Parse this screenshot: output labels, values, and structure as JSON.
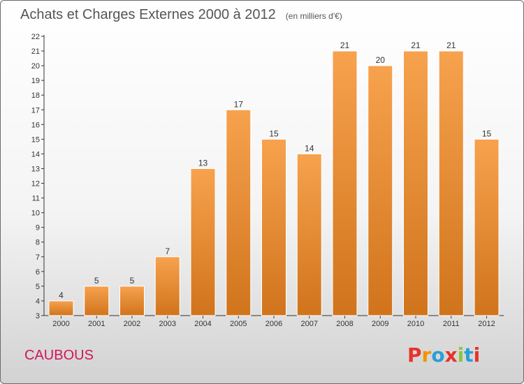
{
  "chart_data": {
    "type": "bar",
    "title": "Achats et Charges Externes 2000 à 2012",
    "subtitle": "(en milliers d'€)",
    "categories": [
      "2000",
      "2001",
      "2002",
      "2003",
      "2004",
      "2005",
      "2006",
      "2007",
      "2008",
      "2009",
      "2010",
      "2011",
      "2012"
    ],
    "values": [
      4,
      5,
      5,
      7,
      13,
      17,
      15,
      14,
      21,
      20,
      21,
      21,
      15
    ],
    "ylim": [
      3,
      22
    ],
    "yticks": [
      3,
      4,
      5,
      6,
      7,
      8,
      9,
      10,
      11,
      12,
      13,
      14,
      15,
      16,
      17,
      18,
      19,
      20,
      21,
      22
    ],
    "grid": false,
    "xlabel": "",
    "ylabel": ""
  },
  "footer": {
    "commune": "CAUBOUS",
    "brand": "Proxiti"
  },
  "colors": {
    "bar_top": "#f7a24e",
    "bar_bottom": "#d0741c",
    "commune_text": "#d2145a",
    "brand_letters": [
      "#e8322a",
      "#f29400",
      "#2a9fd6",
      "#e8322a",
      "#8cc63f",
      "#2a9fd6",
      "#e8322a"
    ]
  }
}
